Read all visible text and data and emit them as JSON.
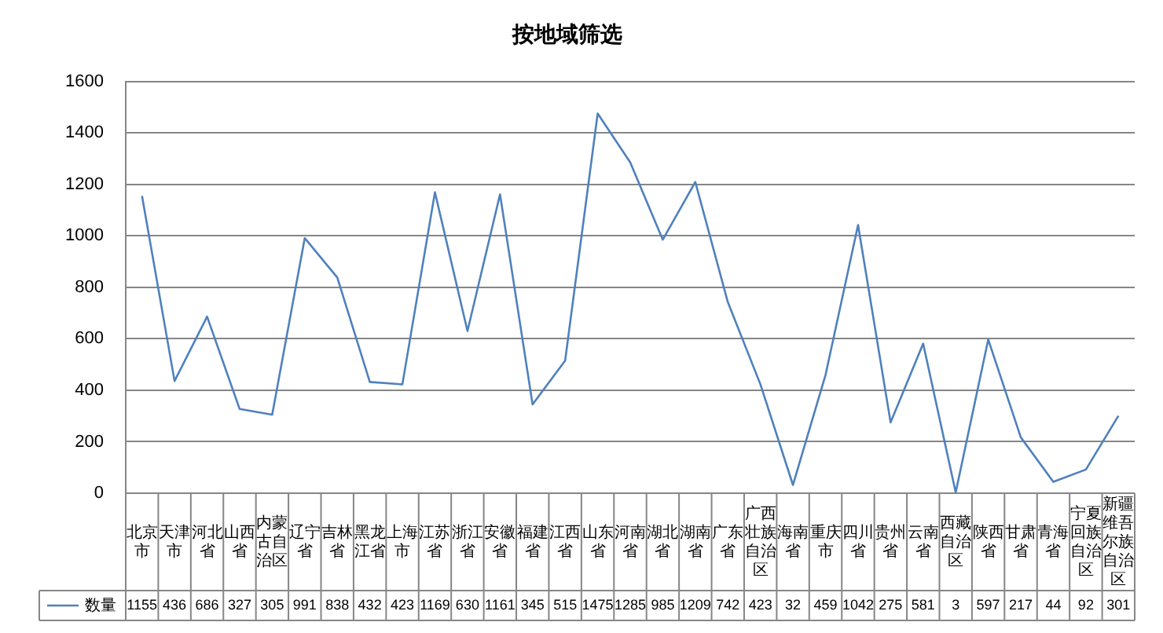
{
  "chart_data": {
    "type": "line",
    "title": "按地域筛选",
    "categories": [
      "北京市",
      "天津市",
      "河北省",
      "山西省",
      "内蒙古自治区",
      "辽宁省",
      "吉林省",
      "黑龙江省",
      "上海市",
      "江苏省",
      "浙江省",
      "安徽省",
      "福建省",
      "江西省",
      "山东省",
      "河南省",
      "湖北省",
      "湖南省",
      "广东省",
      "广西壮族自治区",
      "海南省",
      "重庆市",
      "四川省",
      "贵州省",
      "云南省",
      "西藏自治区",
      "陕西省",
      "甘肃省",
      "青海省",
      "宁夏回族自治区",
      "新疆维吾尔族自治区"
    ],
    "series": [
      {
        "name": "数量",
        "color": "#4f81bd",
        "values": [
          1155,
          436,
          686,
          327,
          305,
          991,
          838,
          432,
          423,
          1169,
          630,
          1161,
          345,
          515,
          1475,
          1285,
          985,
          1209,
          742,
          423,
          32,
          459,
          1042,
          275,
          581,
          3,
          597,
          217,
          44,
          92,
          301
        ]
      }
    ],
    "ylim": [
      0,
      1600
    ],
    "yticks": [
      0,
      200,
      400,
      600,
      800,
      1000,
      1200,
      1400,
      1600
    ],
    "grid": "y",
    "legend": "bottom left",
    "data_labels": true,
    "marker": "none"
  }
}
